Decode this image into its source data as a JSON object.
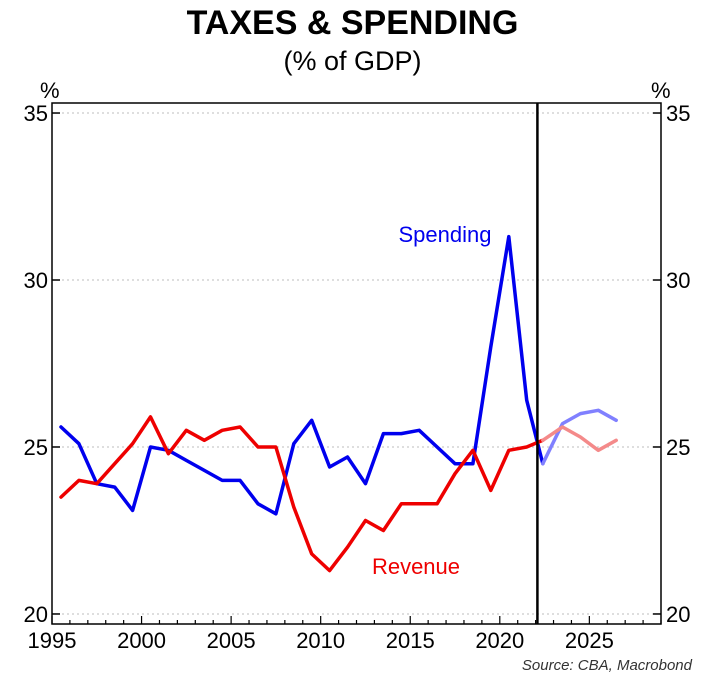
{
  "chart_data": {
    "type": "line",
    "title": "TAXES & SPENDING",
    "subtitle": "(% of GDP)",
    "ylabel_left": "%",
    "ylabel_right": "%",
    "xlim": [
      1995,
      2029
    ],
    "ylim": [
      19.7,
      35.3
    ],
    "x_ticks": [
      1995,
      2000,
      2005,
      2010,
      2015,
      2020,
      2025
    ],
    "x_tick_labels": [
      "1995",
      "2000",
      "2005",
      "2010",
      "2015",
      "2020",
      "2025"
    ],
    "y_ticks": [
      20,
      25,
      30,
      35
    ],
    "y_tick_labels": [
      "20",
      "25",
      "30",
      "35"
    ],
    "gridlines": true,
    "divider_x": 2022.1,
    "forecast_start": 2022.4,
    "series": [
      {
        "name": "Spending",
        "label": "Spending",
        "color": "#0000ee",
        "forecast_color": "#8080ff",
        "x": [
          1995.5,
          1996.5,
          1997.5,
          1998.5,
          1999.5,
          2000.5,
          2001.5,
          2002.5,
          2003.5,
          2004.5,
          2005.5,
          2006.5,
          2007.5,
          2008.5,
          2009.5,
          2010.5,
          2011.5,
          2012.5,
          2013.5,
          2014.5,
          2015.5,
          2016.5,
          2017.5,
          2018.5,
          2019.5,
          2020.5,
          2021.5,
          2022.4,
          2023.5,
          2024.5,
          2025.5,
          2026.5
        ],
        "values": [
          25.6,
          25.1,
          23.9,
          23.8,
          23.1,
          25.0,
          24.9,
          24.6,
          24.3,
          24.0,
          24.0,
          23.3,
          23.0,
          25.1,
          25.8,
          24.4,
          24.7,
          23.9,
          25.4,
          25.4,
          25.5,
          25.0,
          24.5,
          24.5,
          28.0,
          31.3,
          26.4,
          24.5,
          25.7,
          26.0,
          26.1,
          25.8
        ]
      },
      {
        "name": "Revenue",
        "label": "Revenue",
        "color": "#ee0000",
        "forecast_color": "#f48a8a",
        "x": [
          1995.5,
          1996.5,
          1997.5,
          1998.5,
          1999.5,
          2000.5,
          2001.5,
          2002.5,
          2003.5,
          2004.5,
          2005.5,
          2006.5,
          2007.5,
          2008.5,
          2009.5,
          2010.5,
          2011.5,
          2012.5,
          2013.5,
          2014.5,
          2015.5,
          2016.5,
          2017.5,
          2018.5,
          2019.5,
          2020.5,
          2021.5,
          2022.4,
          2023.5,
          2024.5,
          2025.5,
          2026.5
        ],
        "values": [
          23.5,
          24.0,
          23.9,
          24.5,
          25.1,
          25.9,
          24.8,
          25.5,
          25.2,
          25.5,
          25.6,
          25.0,
          25.0,
          23.2,
          21.8,
          21.3,
          22.0,
          22.8,
          22.5,
          23.3,
          23.3,
          23.3,
          24.2,
          24.9,
          23.7,
          24.9,
          25.0,
          25.2,
          25.6,
          25.3,
          24.9,
          25.2
        ]
      }
    ],
    "annotations": [
      "Spending",
      "Revenue"
    ],
    "source": "Source: CBA, Macrobond"
  }
}
